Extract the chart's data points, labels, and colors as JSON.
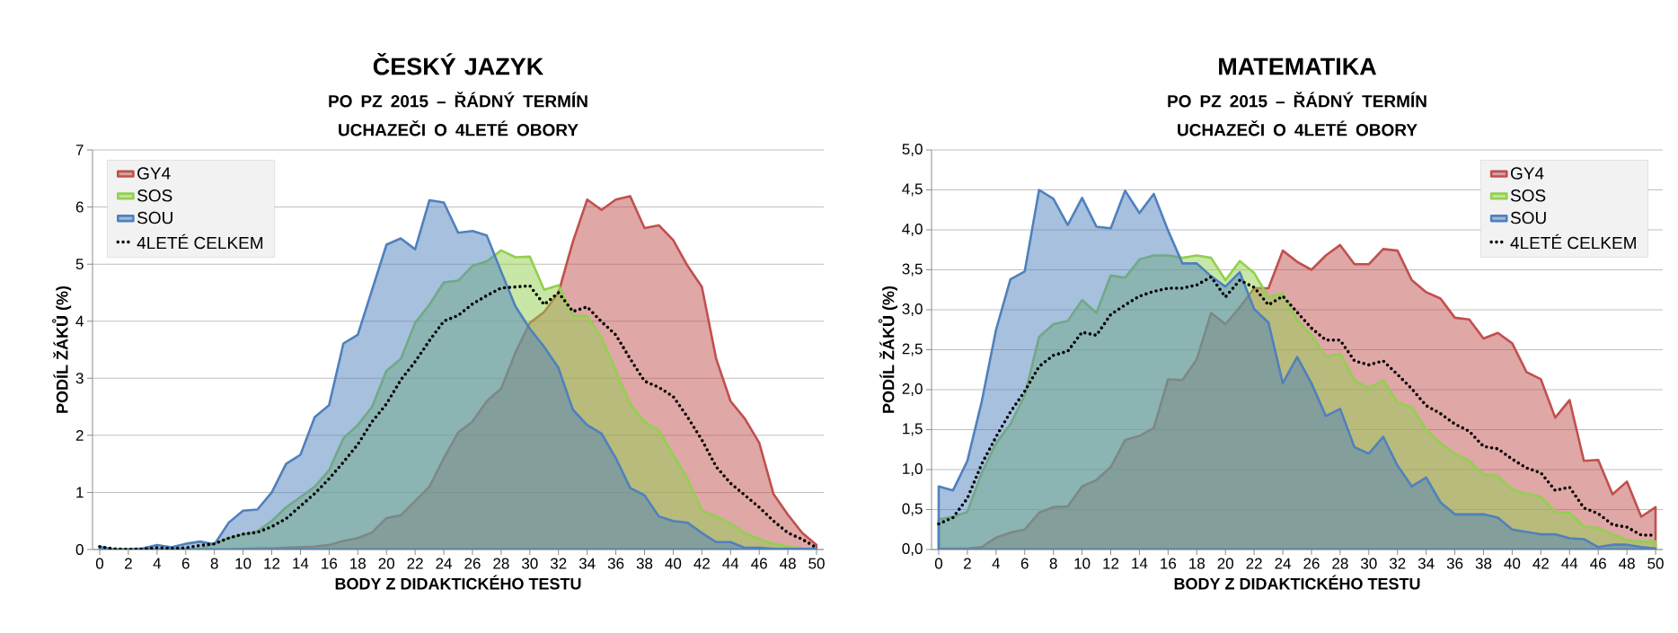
{
  "chart_data": [
    {
      "type": "area",
      "title": "ČESKÝ JAZYK",
      "subtitle": "PO PZ 2015 – ŘÁDNÝ TERMÍN UCHAZEČI O 4LETÉ OBORY",
      "xlabel": "BODY Z DIDAKTICKÉHO TESTU",
      "ylabel": "PODÍL ŽÁKŮ (%)",
      "x": [
        0,
        1,
        2,
        3,
        4,
        5,
        6,
        7,
        8,
        9,
        10,
        11,
        12,
        13,
        14,
        15,
        16,
        17,
        18,
        19,
        20,
        21,
        22,
        23,
        24,
        25,
        26,
        27,
        28,
        29,
        30,
        31,
        32,
        33,
        34,
        35,
        36,
        37,
        38,
        39,
        40,
        41,
        42,
        43,
        44,
        45,
        46,
        47,
        48,
        49,
        50
      ],
      "xlim": [
        -0.5,
        50.5
      ],
      "xticks": [
        0,
        2,
        4,
        6,
        8,
        10,
        12,
        14,
        16,
        18,
        20,
        22,
        24,
        26,
        28,
        30,
        32,
        34,
        36,
        38,
        40,
        42,
        44,
        46,
        48,
        50
      ],
      "ylim": [
        0,
        7
      ],
      "yticks": [
        0,
        1,
        2,
        3,
        4,
        5,
        6,
        7
      ],
      "grid": "y",
      "legend": "top left",
      "series": [
        {
          "name": "GY4",
          "color": "#c0504d",
          "values": [
            0,
            0,
            0,
            0,
            0,
            0,
            0,
            0,
            0,
            0,
            0.01,
            0.02,
            0.02,
            0.03,
            0.04,
            0.05,
            0.08,
            0.15,
            0.2,
            0.3,
            0.55,
            0.6,
            0.85,
            1.1,
            1.6,
            2.05,
            2.24,
            2.6,
            2.82,
            3.45,
            3.97,
            4.16,
            4.5,
            5.39,
            6.13,
            5.95,
            6.13,
            6.19,
            5.63,
            5.68,
            5.42,
            4.97,
            4.6,
            3.34,
            2.6,
            2.29,
            1.87,
            0.97,
            0.61,
            0.29,
            0.08
          ]
        },
        {
          "name": "SOS",
          "color": "#92d050",
          "values": [
            0.01,
            0.01,
            0.01,
            0.01,
            0.01,
            0.01,
            0.01,
            0.01,
            0.1,
            0.2,
            0.26,
            0.32,
            0.5,
            0.74,
            0.92,
            1.1,
            1.39,
            1.95,
            2.18,
            2.5,
            3.13,
            3.34,
            3.97,
            4.29,
            4.68,
            4.71,
            4.97,
            5.05,
            5.24,
            5.12,
            5.13,
            4.55,
            4.63,
            4.1,
            4.09,
            3.71,
            3.13,
            2.55,
            2.24,
            2.08,
            1.66,
            1.24,
            0.68,
            0.58,
            0.45,
            0.29,
            0.18,
            0.1,
            0.05,
            0.02,
            0
          ]
        },
        {
          "name": "SOU",
          "color": "#4f81bd",
          "values": [
            0.05,
            0,
            0,
            0.02,
            0.08,
            0.04,
            0.1,
            0.14,
            0.09,
            0.47,
            0.68,
            0.7,
            1.0,
            1.5,
            1.66,
            2.32,
            2.53,
            3.61,
            3.76,
            4.55,
            5.34,
            5.45,
            5.26,
            6.12,
            6.08,
            5.55,
            5.58,
            5.5,
            4.87,
            4.26,
            3.87,
            3.55,
            3.18,
            2.45,
            2.18,
            2.03,
            1.6,
            1.08,
            0.95,
            0.58,
            0.5,
            0.47,
            0.29,
            0.13,
            0.13,
            0.03,
            0.03,
            0.01,
            0.01,
            0.01,
            0.01
          ]
        },
        {
          "name": "4LETÉ CELKEM",
          "type": "line",
          "line_style": "dotted",
          "color": "#000000",
          "values": [
            0.05,
            0.01,
            0,
            0.01,
            0.03,
            0.02,
            0.03,
            0.07,
            0.1,
            0.2,
            0.27,
            0.3,
            0.4,
            0.54,
            0.76,
            0.98,
            1.24,
            1.53,
            1.84,
            2.24,
            2.55,
            2.97,
            3.29,
            3.66,
            4.0,
            4.1,
            4.3,
            4.45,
            4.58,
            4.6,
            4.62,
            4.29,
            4.5,
            4.17,
            4.25,
            3.99,
            3.76,
            3.34,
            2.95,
            2.84,
            2.68,
            2.32,
            1.92,
            1.45,
            1.16,
            0.95,
            0.74,
            0.5,
            0.29,
            0.18,
            0.03
          ]
        }
      ]
    },
    {
      "type": "area",
      "title": "MATEMATIKA",
      "subtitle": "PO PZ 2015 – ŘÁDNÝ TERMÍN UCHAZEČI O 4LETÉ OBORY",
      "xlabel": "BODY Z DIDAKTICKÉHO TESTU",
      "ylabel": "PODÍL ŽÁKŮ (%)",
      "x": [
        0,
        1,
        2,
        3,
        4,
        5,
        6,
        7,
        8,
        9,
        10,
        11,
        12,
        13,
        14,
        15,
        16,
        17,
        18,
        19,
        20,
        21,
        22,
        23,
        24,
        25,
        26,
        27,
        28,
        29,
        30,
        31,
        32,
        33,
        34,
        35,
        36,
        37,
        38,
        39,
        40,
        41,
        42,
        43,
        44,
        45,
        46,
        47,
        48,
        49,
        50
      ],
      "xlim": [
        -0.5,
        50.5
      ],
      "xticks": [
        0,
        2,
        4,
        6,
        8,
        10,
        12,
        14,
        16,
        18,
        20,
        22,
        24,
        26,
        28,
        30,
        32,
        34,
        36,
        38,
        40,
        42,
        44,
        46,
        48,
        50
      ],
      "ylim": [
        0,
        5
      ],
      "yticks": [
        {
          "value": 0,
          "label": "0,0"
        },
        {
          "value": 0.5,
          "label": "0,5"
        },
        {
          "value": 1,
          "label": "1,0"
        },
        {
          "value": 1.5,
          "label": "1,5"
        },
        {
          "value": 2,
          "label": "2,0"
        },
        {
          "value": 2.5,
          "label": "2,5"
        },
        {
          "value": 3,
          "label": "3,0"
        },
        {
          "value": 3.5,
          "label": "3,5"
        },
        {
          "value": 4,
          "label": "4,0"
        },
        {
          "value": 4.5,
          "label": "4,5"
        },
        {
          "value": 5,
          "label": "5,0"
        }
      ],
      "grid": "y",
      "legend": "top right",
      "series": [
        {
          "name": "GY4",
          "color": "#c0504d",
          "values": [
            0.01,
            0.01,
            0.01,
            0.03,
            0.15,
            0.21,
            0.25,
            0.46,
            0.53,
            0.54,
            0.79,
            0.87,
            1.03,
            1.37,
            1.42,
            1.52,
            2.13,
            2.12,
            2.38,
            2.96,
            2.82,
            3.03,
            3.27,
            3.27,
            3.74,
            3.6,
            3.5,
            3.68,
            3.81,
            3.57,
            3.57,
            3.76,
            3.74,
            3.37,
            3.22,
            3.14,
            2.9,
            2.88,
            2.64,
            2.71,
            2.58,
            2.22,
            2.13,
            1.65,
            1.87,
            1.11,
            1.12,
            0.69,
            0.85,
            0.41,
            0.53
          ]
        },
        {
          "name": "SOS",
          "color": "#92d050",
          "values": [
            0.38,
            0.41,
            0.47,
            0.96,
            1.33,
            1.57,
            1.93,
            2.66,
            2.82,
            2.86,
            3.12,
            2.96,
            3.43,
            3.4,
            3.63,
            3.68,
            3.68,
            3.65,
            3.68,
            3.65,
            3.37,
            3.61,
            3.46,
            3.16,
            3.2,
            2.87,
            2.68,
            2.41,
            2.45,
            2.12,
            2.02,
            2.12,
            1.84,
            1.78,
            1.5,
            1.33,
            1.2,
            1.11,
            0.94,
            0.92,
            0.75,
            0.7,
            0.66,
            0.47,
            0.46,
            0.29,
            0.27,
            0.19,
            0.12,
            0.1,
            0.1
          ]
        },
        {
          "name": "SOU",
          "color": "#4f81bd",
          "values": [
            0.79,
            0.74,
            1.11,
            1.85,
            2.75,
            3.38,
            3.48,
            4.5,
            4.39,
            4.06,
            4.4,
            4.04,
            4.02,
            4.49,
            4.21,
            4.45,
            3.99,
            3.58,
            3.58,
            3.42,
            3.29,
            3.47,
            3.01,
            2.84,
            2.08,
            2.41,
            2.08,
            1.67,
            1.76,
            1.28,
            1.2,
            1.41,
            1.05,
            0.79,
            0.9,
            0.59,
            0.44,
            0.44,
            0.44,
            0.4,
            0.25,
            0.22,
            0.19,
            0.19,
            0.14,
            0.13,
            0.03,
            0.06,
            0.06,
            0.03,
            0.01
          ]
        },
        {
          "name": "4LETÉ CELKEM",
          "type": "line",
          "line_style": "dotted",
          "color": "#000000",
          "values": [
            0.32,
            0.4,
            0.64,
            1.07,
            1.41,
            1.72,
            1.98,
            2.29,
            2.43,
            2.48,
            2.72,
            2.68,
            2.94,
            3.06,
            3.17,
            3.23,
            3.27,
            3.27,
            3.31,
            3.41,
            3.16,
            3.37,
            3.28,
            3.06,
            3.17,
            2.97,
            2.77,
            2.62,
            2.62,
            2.36,
            2.31,
            2.36,
            2.19,
            2.01,
            1.8,
            1.7,
            1.57,
            1.48,
            1.29,
            1.26,
            1.13,
            1.02,
            0.96,
            0.74,
            0.78,
            0.52,
            0.45,
            0.31,
            0.28,
            0.18,
            0.18
          ]
        }
      ]
    }
  ]
}
